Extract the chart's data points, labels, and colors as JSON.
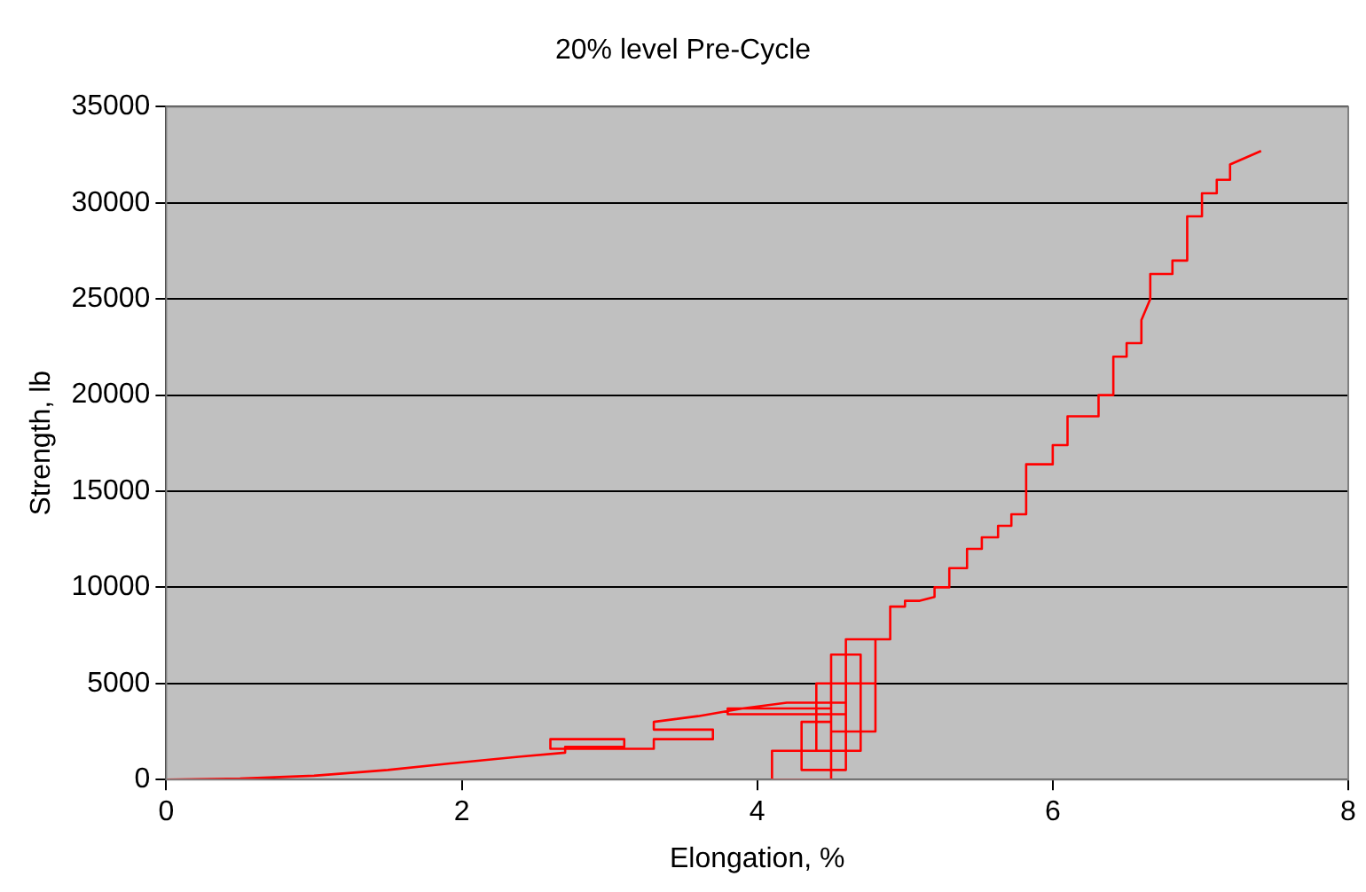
{
  "chart_data": {
    "type": "line",
    "title": "20% level Pre-Cycle",
    "xlabel": "Elongation, %",
    "ylabel": "Strength, lb",
    "xlim": [
      0,
      8
    ],
    "xticks": [
      0,
      2,
      4,
      6,
      8
    ],
    "ylim": [
      0,
      35000
    ],
    "yticks": [
      0,
      5000,
      10000,
      15000,
      20000,
      25000,
      30000,
      35000
    ],
    "grid": "y",
    "legend": false,
    "marker": "none",
    "line_style": "solid",
    "series": [
      {
        "color": "#ff0000",
        "x": [
          0,
          0.5,
          1,
          1.5,
          2,
          2.4,
          2.7,
          2.7,
          3.1,
          3.1,
          2.6,
          2.6,
          3.3,
          3.3,
          3.7,
          3.7,
          3.3,
          3.3,
          3.6,
          3.9,
          4.2,
          4.6,
          4.6,
          3.8,
          3.8,
          4.3,
          4.5,
          4.5,
          4.1,
          4.1,
          4.5,
          4.5,
          4.3,
          4.3,
          4.6,
          4.6,
          4.4,
          4.4,
          4.7,
          4.7,
          4.5,
          4.5,
          4.8,
          4.8,
          4.6,
          4.6,
          4.8,
          4.8,
          4.9,
          4.9,
          5.0,
          5.0,
          5.1,
          5.2,
          5.2,
          5.3,
          5.3,
          5.42,
          5.42,
          5.52,
          5.52,
          5.63,
          5.63,
          5.72,
          5.72,
          5.82,
          5.82,
          6.0,
          6.0,
          6.1,
          6.1,
          6.31,
          6.31,
          6.41,
          6.41,
          6.5,
          6.5,
          6.6,
          6.6,
          6.6,
          6.66,
          6.66,
          6.81,
          6.81,
          6.91,
          6.91,
          7.01,
          7.01,
          7.11,
          7.11,
          7.2,
          7.2,
          7.41
        ],
        "values": [
          0,
          50,
          200,
          500,
          900,
          1200,
          1400,
          1700,
          1700,
          2100,
          2100,
          1600,
          1600,
          2100,
          2100,
          2600,
          2600,
          3000,
          3300,
          3700,
          4000,
          4000,
          3400,
          3400,
          3700,
          3700,
          3700,
          1500,
          1500,
          0,
          0,
          3000,
          3000,
          500,
          500,
          5000,
          5000,
          1500,
          1500,
          6500,
          6500,
          2500,
          2500,
          7300,
          7300,
          5000,
          5000,
          7300,
          7300,
          9000,
          9000,
          9300,
          9300,
          9500,
          10000,
          10000,
          11000,
          11000,
          12000,
          12000,
          12600,
          12600,
          13200,
          13200,
          13800,
          13800,
          16400,
          16400,
          17400,
          17400,
          18900,
          18900,
          20000,
          20000,
          22000,
          22000,
          22700,
          22700,
          23900,
          23900,
          25000,
          26300,
          26300,
          27000,
          27000,
          29300,
          29300,
          30500,
          30500,
          31200,
          31200,
          32000,
          32700
        ]
      }
    ]
  }
}
